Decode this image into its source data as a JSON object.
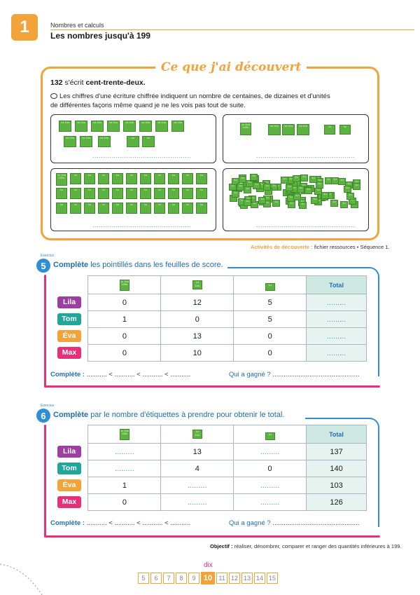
{
  "header": {
    "chapter_number": "1",
    "section": "Nombres et calculs",
    "title": "Les nombres jusqu'à 199"
  },
  "discovery": {
    "title": "Ce que j'ai découvert",
    "number": "132",
    "written_prefix": "s'écrit",
    "written_words": "cent-trente-deux.",
    "explanation_line1": "Les chiffres d'une écriture chiffrée indiquent un nombre de centaines, de dizaines et d'unités",
    "explanation_line2": "de différentes façons même quand je ne les vois pas tout de suite.",
    "dotted_answer": "...............................................",
    "footer_label": "Activités de découverte :",
    "footer_text": "fichier ressources • Séquence 1."
  },
  "labels": {
    "hundred_sq": "1c 10d 100u",
    "ten_sq": "1d 10u",
    "unit_sq": "1u"
  },
  "exercise5": {
    "tag": "Exercice",
    "number": "5",
    "instruction_bold": "Complète",
    "instruction_rest": "les pointillés dans les feuilles de score.",
    "total_header": "Total",
    "rows": [
      {
        "name": "Lila",
        "color": "#9c3fa0",
        "c": "0",
        "d": "12",
        "u": "5",
        "total": "........."
      },
      {
        "name": "Tom",
        "color": "#1fa89a",
        "c": "1",
        "d": "0",
        "u": "5",
        "total": "........."
      },
      {
        "name": "Éva",
        "color": "#f2a33a",
        "c": "0",
        "d": "13",
        "u": "0",
        "total": "........."
      },
      {
        "name": "Max",
        "color": "#e5307a",
        "c": "0",
        "d": "10",
        "u": "0",
        "total": "........."
      }
    ],
    "complete_label": "Complète :",
    "complete_text": "........... < ........... < ........... < ...........",
    "winner_label": "Qui a gagné ?",
    "winner_dots": "..............................................."
  },
  "exercise6": {
    "tag": "Exercice",
    "number": "6",
    "instruction_bold": "Complète",
    "instruction_rest": "par le nombre d'étiquettes à prendre pour obtenir le total.",
    "total_header": "Total",
    "rows": [
      {
        "name": "Lila",
        "color": "#9c3fa0",
        "c": ".........",
        "d": "13",
        "u": ".........",
        "total": "137"
      },
      {
        "name": "Tom",
        "color": "#1fa89a",
        "c": ".........",
        "d": "4",
        "u": "0",
        "total": "140"
      },
      {
        "name": "Éva",
        "color": "#f2a33a",
        "c": "1",
        "d": ".........",
        "u": ".........",
        "total": "103"
      },
      {
        "name": "Max",
        "color": "#e5307a",
        "c": "0",
        "d": ".........",
        "u": ".........",
        "total": "126"
      }
    ],
    "complete_label": "Complète :",
    "complete_text": "........... < ........... < ........... < ...........",
    "winner_label": "Qui a gagné ?",
    "winner_dots": "..............................................."
  },
  "objectif": {
    "label": "Objectif :",
    "text": "réaliser, dénombrer, comparer et ranger des quantités inférieures à 199."
  },
  "pager": {
    "word": "dix",
    "pages": [
      "5",
      "6",
      "7",
      "8",
      "9",
      "10",
      "11",
      "12",
      "13",
      "14",
      "15"
    ],
    "current": "10"
  }
}
